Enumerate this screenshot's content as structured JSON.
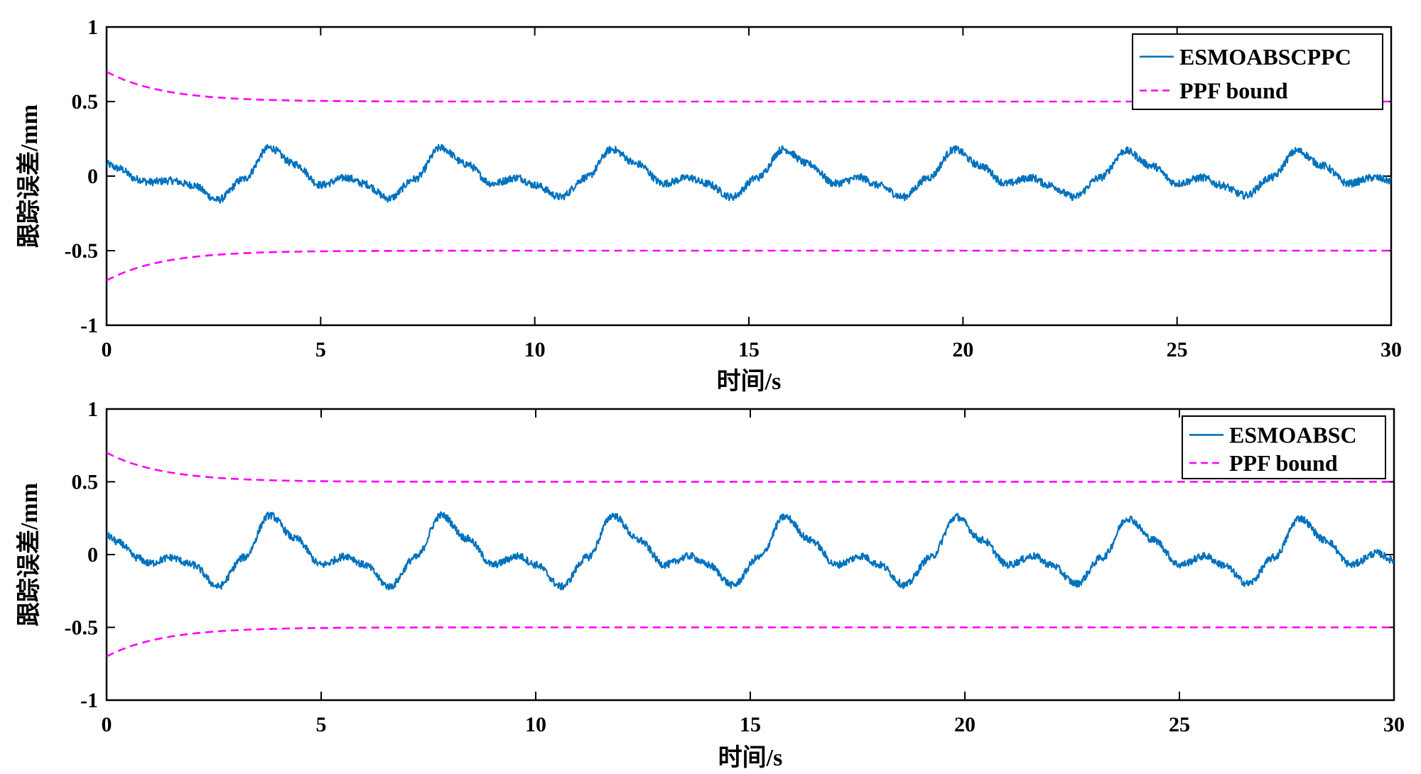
{
  "colors": {
    "primary_series": "#0072BD",
    "bound": "#FF00FF",
    "axes": "#000000",
    "background": "#FFFFFF"
  },
  "chart_data": [
    {
      "type": "line",
      "xlabel": "时间/s",
      "ylabel": "跟踪误差/mm",
      "xlim": [
        0,
        30
      ],
      "ylim": [
        -1,
        1
      ],
      "xticks": [
        "0",
        "5",
        "10",
        "15",
        "20",
        "25",
        "30"
      ],
      "yticks": [
        "-1",
        "-0.5",
        "0",
        "0.5",
        "1"
      ],
      "grid": false,
      "legend_position": "top-right",
      "series": [
        {
          "name": "ESMOABSCPPC",
          "style": "solid",
          "x": [
            0,
            0.3,
            0.7,
            1.0,
            1.5,
            2.0,
            2.6,
            3.2,
            3.8,
            4.4,
            5.0,
            5.6,
            6.0,
            6.6,
            7.2,
            7.8,
            8.4,
            9.0,
            9.6,
            10.0,
            10.6,
            11.2,
            11.8,
            12.4,
            13.0,
            13.6,
            14.0,
            14.6,
            15.2,
            15.8,
            16.4,
            17.0,
            17.6,
            18.0,
            18.6,
            19.2,
            19.8,
            20.4,
            21.0,
            21.6,
            22.0,
            22.6,
            23.2,
            23.8,
            24.4,
            25.0,
            25.6,
            26.0,
            26.6,
            27.2,
            27.8,
            28.4,
            29.0,
            29.6,
            30.0
          ],
          "y": [
            0.08,
            0.05,
            -0.02,
            -0.04,
            -0.03,
            -0.06,
            -0.16,
            -0.02,
            0.19,
            0.08,
            -0.06,
            -0.01,
            -0.05,
            -0.15,
            -0.02,
            0.19,
            0.08,
            -0.05,
            -0.01,
            -0.06,
            -0.14,
            -0.01,
            0.18,
            0.08,
            -0.05,
            -0.01,
            -0.05,
            -0.14,
            -0.01,
            0.18,
            0.08,
            -0.05,
            -0.01,
            -0.06,
            -0.14,
            -0.01,
            0.18,
            0.07,
            -0.05,
            -0.01,
            -0.06,
            -0.14,
            -0.01,
            0.17,
            0.07,
            -0.05,
            -0.01,
            -0.06,
            -0.13,
            -0.01,
            0.17,
            0.07,
            -0.05,
            -0.01,
            -0.03
          ]
        },
        {
          "name": "PPF bound",
          "style": "dashed",
          "upper": {
            "start": 0.7,
            "end": 0.5
          },
          "lower": {
            "start": -0.7,
            "end": -0.5
          }
        }
      ]
    },
    {
      "type": "line",
      "xlabel": "时间/s",
      "ylabel": "跟踪误差/mm",
      "xlim": [
        0,
        30
      ],
      "ylim": [
        -1,
        1
      ],
      "xticks": [
        "0",
        "5",
        "10",
        "15",
        "20",
        "25",
        "30"
      ],
      "yticks": [
        "-1",
        "-0.5",
        "0",
        "0.5",
        "1"
      ],
      "grid": false,
      "legend_position": "top-right",
      "series": [
        {
          "name": "ESMOABSC",
          "style": "solid",
          "x": [
            0,
            0.3,
            0.7,
            1.0,
            1.5,
            2.0,
            2.6,
            3.2,
            3.8,
            4.4,
            5.0,
            5.6,
            6.0,
            6.6,
            7.2,
            7.8,
            8.4,
            9.0,
            9.6,
            10.0,
            10.6,
            11.2,
            11.8,
            12.4,
            13.0,
            13.6,
            14.0,
            14.6,
            15.2,
            15.8,
            16.4,
            17.0,
            17.6,
            18.0,
            18.6,
            19.2,
            19.8,
            20.4,
            21.0,
            21.6,
            22.0,
            22.6,
            23.2,
            23.8,
            24.4,
            25.0,
            25.6,
            26.0,
            26.6,
            27.2,
            27.8,
            28.4,
            29.0,
            29.6,
            30.0
          ],
          "y": [
            0.13,
            0.08,
            -0.02,
            -0.06,
            -0.02,
            -0.07,
            -0.22,
            -0.02,
            0.27,
            0.11,
            -0.07,
            -0.01,
            -0.07,
            -0.22,
            -0.02,
            0.27,
            0.11,
            -0.07,
            -0.01,
            -0.07,
            -0.22,
            -0.02,
            0.27,
            0.1,
            -0.07,
            -0.01,
            -0.07,
            -0.21,
            -0.02,
            0.26,
            0.1,
            -0.07,
            -0.01,
            -0.07,
            -0.21,
            -0.02,
            0.26,
            0.1,
            -0.07,
            -0.01,
            -0.07,
            -0.2,
            -0.02,
            0.25,
            0.1,
            -0.07,
            -0.01,
            -0.07,
            -0.2,
            -0.02,
            0.25,
            0.1,
            -0.07,
            0.01,
            -0.04
          ]
        },
        {
          "name": "PPF bound",
          "style": "dashed",
          "upper": {
            "start": 0.7,
            "end": 0.5
          },
          "lower": {
            "start": -0.7,
            "end": -0.5
          }
        }
      ]
    }
  ]
}
